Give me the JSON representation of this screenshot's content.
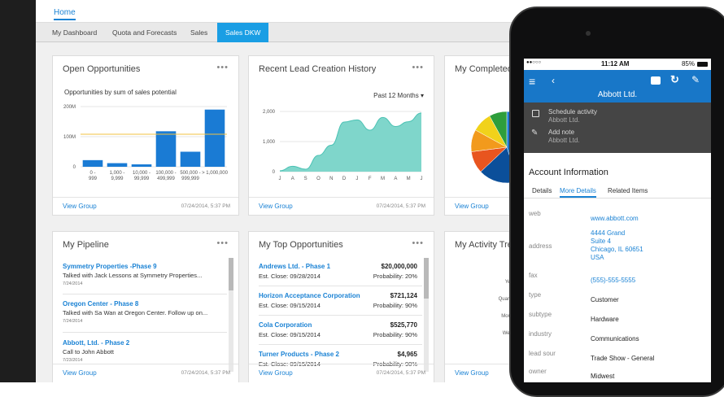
{
  "topnav": {
    "home": "Home"
  },
  "tabs": [
    "My Dashboard",
    "Quota and Forecasts",
    "Sales",
    "Sales DKW"
  ],
  "cards": {
    "open_opportunities": {
      "title": "Open Opportunities",
      "menu": "•••",
      "subtitle": "Opportunities by sum of sales potential",
      "link": "View Group",
      "date": "07/24/2014, 5:37 PM"
    },
    "recent_leads": {
      "title": "Recent Lead Creation History",
      "menu": "•••",
      "filter": "Past 12 Months ▾",
      "link": "View Group",
      "date": "07/24/2014, 5:37 PM"
    },
    "my_completed": {
      "title": "My Completed",
      "link": "View Group"
    },
    "my_pipeline": {
      "title": "My Pipeline",
      "menu": "•••",
      "items": [
        {
          "title": "Symmetry Properties -Phase 9",
          "sub": "Talked with Jack Lessons at Symmetry Properties...",
          "date": "7/24/2014"
        },
        {
          "title": "Oregon Center - Phase 8",
          "sub": "Talked with Sa Wan at Oregon Center. Follow up on...",
          "date": "7/24/2014"
        },
        {
          "title": "Abbott, Ltd. - Phase 2",
          "sub": "Call to John Abbott",
          "date": "7/23/2014"
        }
      ],
      "link": "View Group",
      "date": "07/24/2014, 5:37 PM"
    },
    "my_top_opportunities": {
      "title": "My Top Opportunities",
      "menu": "•••",
      "items": [
        {
          "name": "Andrews Ltd. - Phase 1",
          "amount": "$20,000,000",
          "close": "Est. Close: 09/28/2014",
          "prob": "Probability: 20%"
        },
        {
          "name": "Horizon Acceptance Corporation",
          "amount": "$721,124",
          "close": "Est. Close: 09/15/2014",
          "prob": "Probability: 90%"
        },
        {
          "name": "Cola Corporation",
          "amount": "$525,770",
          "close": "Est. Close: 09/15/2014",
          "prob": "Probability: 90%"
        },
        {
          "name": "Turner Products - Phase 2",
          "amount": "$4,965",
          "close": "Est. Close: 09/15/2014",
          "prob": "Probability: 90%"
        }
      ],
      "link": "View Group",
      "date": "07/24/2014, 5:37 PM"
    },
    "my_activity": {
      "title": "My Activity Tre",
      "link": "View Group"
    }
  },
  "chart_data": [
    {
      "type": "bar",
      "categories": [
        "0 - 999",
        "1,000 - 9,999",
        "10,000 - 99,999",
        "100,000 - 499,999",
        "500,000 - 999,999",
        "> 1,000,000"
      ],
      "values": [
        22,
        12,
        8,
        118,
        50,
        190
      ],
      "yticks": [
        "0",
        "100M",
        "200M"
      ],
      "ylim": [
        0,
        200
      ],
      "reference_line": 108,
      "colors": {
        "bar": "#1a7bd4",
        "reference": "#f0c040"
      }
    },
    {
      "type": "area",
      "categories": [
        "J",
        "A",
        "S",
        "O",
        "N",
        "D",
        "J",
        "F",
        "M",
        "A",
        "M",
        "J"
      ],
      "values": [
        30,
        180,
        80,
        540,
        880,
        1650,
        1720,
        1380,
        1800,
        1500,
        1660,
        1950
      ],
      "yticks": [
        "0",
        "1,000",
        "2,000"
      ],
      "ylim": [
        0,
        2000
      ],
      "colors": {
        "fill": "#7fd6cb",
        "stroke": "#4bc2b4"
      }
    },
    {
      "type": "pie",
      "values": [
        45,
        18,
        10,
        10,
        9,
        8
      ],
      "colors": [
        "#1a78d2",
        "#0b4f9a",
        "#e8551f",
        "#f29a1c",
        "#f1d21a",
        "#2e9e3c"
      ]
    },
    {
      "type": "bar",
      "orientation": "horizontal",
      "categories": [
        "Year to date",
        "Quarter to date",
        "Month to date",
        "Week to date"
      ],
      "xticks": [
        "0"
      ],
      "colors": {
        "bar": "#1a7bd4"
      }
    }
  ],
  "phone": {
    "status": {
      "signal": "●●○○○",
      "time": "11:12 AM",
      "battery": "85%"
    },
    "header": {
      "title": "Abbott Ltd."
    },
    "actions": [
      {
        "icon": "calendar-icon",
        "label": "Schedule activity",
        "sub": "Abbott Ltd."
      },
      {
        "icon": "note-icon",
        "label": "Add note",
        "sub": "Abbott Ltd."
      }
    ],
    "section_title": "Account Information",
    "subtabs": [
      "Details",
      "More Details",
      "Related Items"
    ],
    "fields": [
      {
        "label": "web",
        "value": "www.abbott.com",
        "link": true
      },
      {
        "label": "address",
        "value": [
          "4444 Grand",
          "Suite 4",
          "Chicago, IL 60651",
          "USA"
        ],
        "link": true
      },
      {
        "label": "fax",
        "value": "(555)-555-5555",
        "link": true
      },
      {
        "label": "type",
        "value": "Customer",
        "link": false
      },
      {
        "label": "subtype",
        "value": "Hardware",
        "link": false
      },
      {
        "label": "industry",
        "value": "Communications",
        "link": false
      },
      {
        "label": "lead sour",
        "value": "Trade Show - General",
        "link": false
      },
      {
        "label": "owner",
        "value": "Midwest",
        "link": false
      }
    ]
  }
}
